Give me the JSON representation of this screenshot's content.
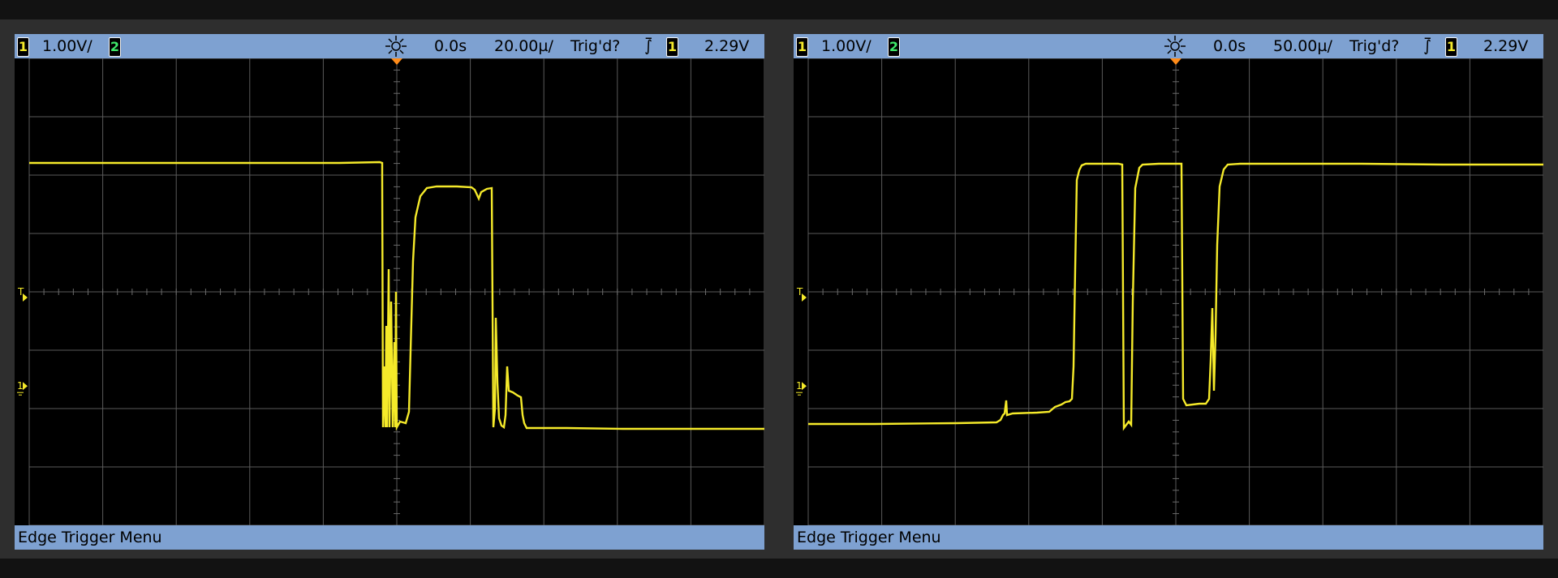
{
  "scopes": [
    {
      "ch1_scale": "1.00V/",
      "ch1_label": "1",
      "ch2_label": "2",
      "time_offset": "0.0s",
      "time_scale": "20.00µ/",
      "trig_status": "Trig'd?",
      "trig_edge_symbol": "⨛",
      "trig_source": "1",
      "trig_level": "2.29V",
      "menu_title": "Edge Trigger Menu",
      "trace_color": "#f5ea2a"
    },
    {
      "ch1_scale": "1.00V/",
      "ch1_label": "1",
      "ch2_label": "2",
      "time_offset": "0.0s",
      "time_scale": "50.00µ/",
      "trig_status": "Trig'd?",
      "trig_edge_symbol": "⨛",
      "trig_source": "1",
      "trig_level": "2.29V",
      "menu_title": "Edge Trigger Menu",
      "trace_color": "#f5ea2a"
    }
  ],
  "icons": [
    "acquire-sunburst-icon",
    "trigger-position-icon",
    "trigger-level-marker-icon",
    "channel1-ground-marker-icon",
    "falling-edge-icon"
  ]
}
